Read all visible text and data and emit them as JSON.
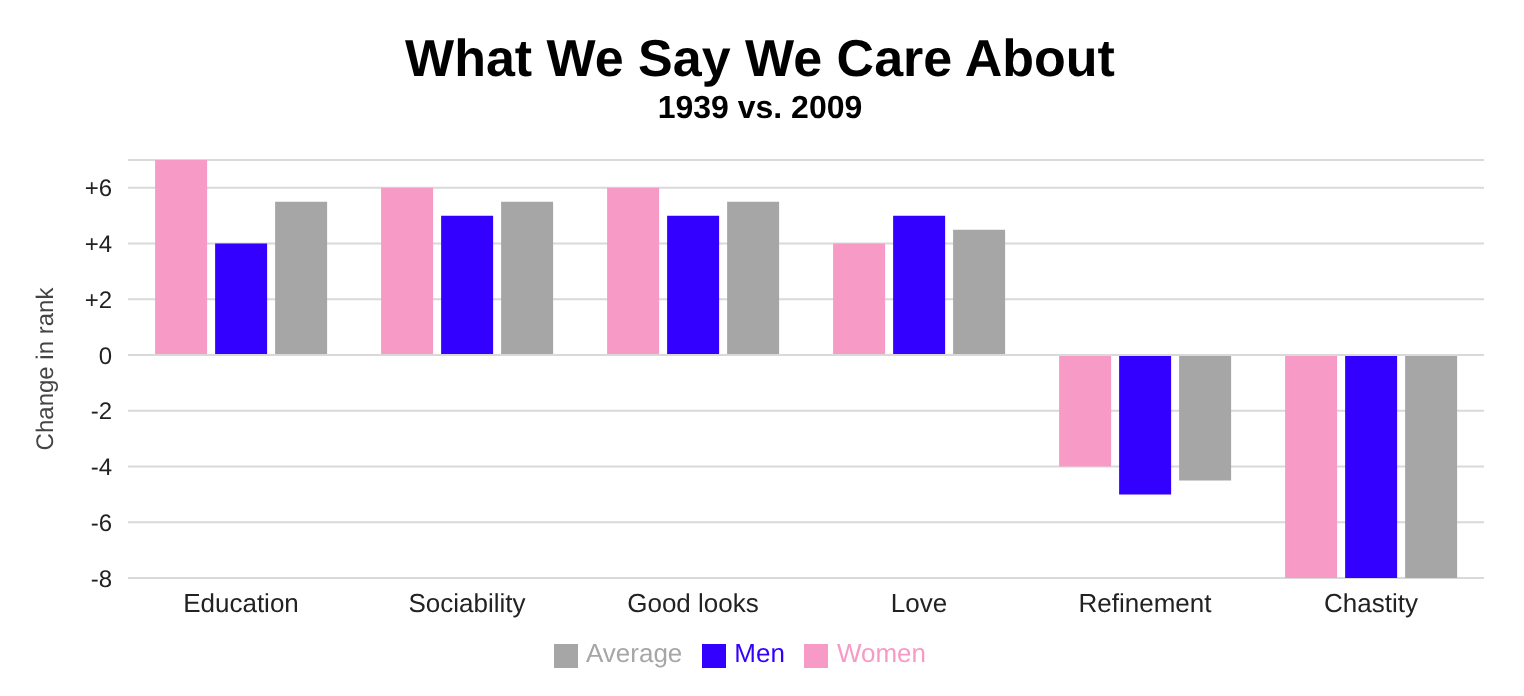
{
  "chart_data": {
    "type": "bar",
    "title": "What We Say We Care About",
    "subtitle": "1939 vs. 2009",
    "ylabel": "Change in rank",
    "categories": [
      "Education",
      "Sociability",
      "Good looks",
      "Love",
      "Refinement",
      "Chastity"
    ],
    "series": [
      {
        "name": "Women",
        "color": "#f79ac6",
        "values": [
          7,
          6,
          6,
          4,
          -4,
          -8
        ]
      },
      {
        "name": "Men",
        "color": "#3300ff",
        "values": [
          4,
          5,
          5,
          5,
          -5,
          -8
        ]
      },
      {
        "name": "Average",
        "color": "#a6a6a6",
        "values": [
          5.5,
          5.5,
          5.5,
          4.5,
          -4.5,
          -8
        ]
      }
    ],
    "ylim": [
      -8,
      7
    ],
    "yticks": [
      {
        "value": 6,
        "label": "+6"
      },
      {
        "value": 4,
        "label": "+4"
      },
      {
        "value": 2,
        "label": "+2"
      },
      0,
      -2,
      -4,
      -6,
      -8
    ],
    "grid": "y",
    "legend": "bottom"
  }
}
